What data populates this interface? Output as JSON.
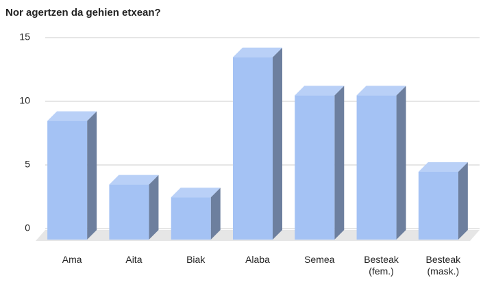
{
  "chart_data": {
    "type": "bar3d",
    "title": "Nor agertzen da gehien etxean?",
    "categories": [
      "Ama",
      "Aita",
      "Biak",
      "Alaba",
      "Semea",
      "Besteak (fem.)",
      "Besteak (mask.)"
    ],
    "values": [
      9,
      4,
      3,
      14,
      11,
      11,
      5
    ],
    "color": "#a4c2f4",
    "ylim": [
      0,
      15
    ],
    "yticks": [
      0,
      5,
      10,
      15
    ],
    "grid": true
  }
}
